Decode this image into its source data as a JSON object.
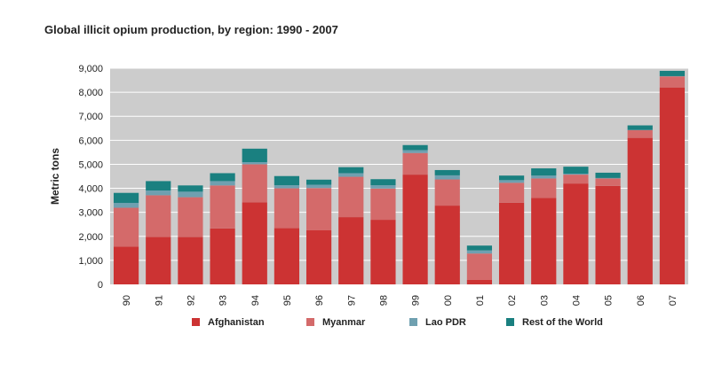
{
  "chart_data": {
    "type": "bar",
    "stacked": true,
    "title": "Global illicit opium production, by region: 1990 - 2007",
    "xlabel": "",
    "ylabel": "Metric tons",
    "ylim": [
      0,
      9000
    ],
    "yticks": [
      0,
      1000,
      2000,
      3000,
      4000,
      5000,
      6000,
      7000,
      8000,
      9000
    ],
    "ytick_labels": [
      "0",
      "1,000",
      "2,000",
      "3,000",
      "4,000",
      "5,000",
      "6,000",
      "7,000",
      "8,000",
      "9,000"
    ],
    "grid": true,
    "legend_position": "bottom",
    "categories": [
      "90",
      "91",
      "92",
      "93",
      "94",
      "95",
      "96",
      "97",
      "98",
      "99",
      "00",
      "01",
      "02",
      "03",
      "04",
      "05",
      "06",
      "07"
    ],
    "series": [
      {
        "name": "Afghanistan",
        "color": "#cc3333",
        "values": [
          1570,
          1980,
          1970,
          2330,
          3420,
          2340,
          2250,
          2800,
          2690,
          4570,
          3280,
          185,
          3400,
          3600,
          4200,
          4100,
          6100,
          8200
        ]
      },
      {
        "name": "Myanmar",
        "color": "#d46a6a",
        "values": [
          1620,
          1730,
          1660,
          1790,
          1580,
          1660,
          1760,
          1680,
          1300,
          900,
          1090,
          1100,
          830,
          810,
          370,
          310,
          320,
          460
        ]
      },
      {
        "name": "Lao PDR",
        "color": "#6fa0b0",
        "values": [
          200,
          200,
          230,
          180,
          90,
          130,
          140,
          150,
          140,
          120,
          170,
          130,
          110,
          120,
          40,
          20,
          10,
          10
        ]
      },
      {
        "name": "Rest of the World",
        "color": "#1a8080",
        "values": [
          420,
          390,
          260,
          330,
          560,
          380,
          210,
          250,
          250,
          210,
          220,
          200,
          190,
          300,
          290,
          220,
          190,
          220
        ]
      }
    ]
  }
}
